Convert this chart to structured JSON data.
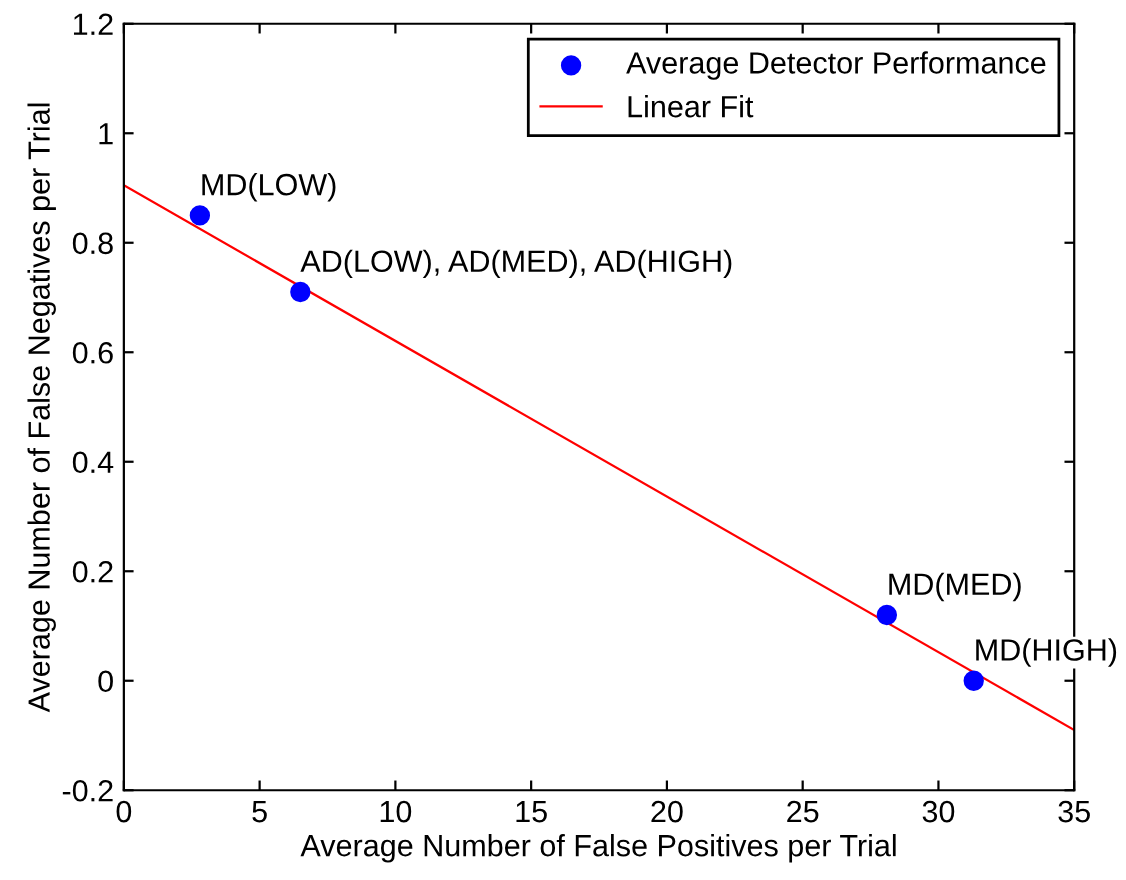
{
  "chart_data": {
    "type": "scatter",
    "xlabel": "Average Number of False Positives per Trial",
    "ylabel": "Average Number of False Negatives per Trial",
    "xlim": [
      0,
      35
    ],
    "ylim": [
      -0.2,
      1.2
    ],
    "xticks": [
      0,
      5,
      10,
      15,
      20,
      25,
      30,
      35
    ],
    "yticks": [
      -0.2,
      0,
      0.2,
      0.4,
      0.6,
      0.8,
      1,
      1.2
    ],
    "series": [
      {
        "name": "Average Detector Performance",
        "color": "#0000ff",
        "marker": "circle",
        "x": [
          2.8,
          6.5,
          28.1,
          31.3
        ],
        "values": [
          0.85,
          0.71,
          0.12,
          0.0
        ]
      },
      {
        "name": "Linear Fit",
        "type": "line",
        "color": "#ff0000",
        "marker": "none",
        "line_style": "solid",
        "x": [
          0,
          35
        ],
        "values": [
          0.905,
          -0.09
        ]
      }
    ],
    "annotations": [
      {
        "text": "MD(LOW)",
        "x": 2.8,
        "y": 0.85
      },
      {
        "text": "AD(LOW), AD(MED), AD(HIGH)",
        "x": 6.5,
        "y": 0.71
      },
      {
        "text": "MD(MED)",
        "x": 28.1,
        "y": 0.12
      },
      {
        "text": "MD(HIGH)",
        "x": 31.3,
        "y": 0.0
      }
    ],
    "legend": "top right",
    "grid": false
  }
}
